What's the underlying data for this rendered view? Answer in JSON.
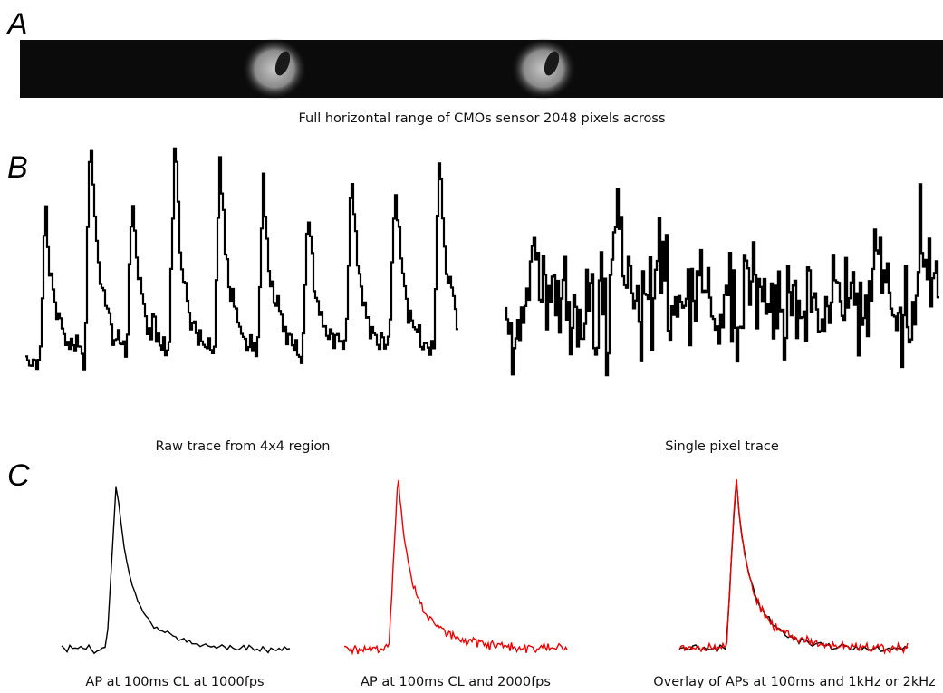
{
  "panel_a": {
    "label": "A",
    "caption": "Full horizontal range of CMOs sensor 2048 pixels across"
  },
  "panel_b": {
    "label": "B",
    "captions": [
      "Raw trace from 4x4 region",
      "Single pixel trace"
    ]
  },
  "panel_c": {
    "label": "C",
    "captions": [
      "AP at 100ms  CL at 1000fps",
      "AP at 100ms CL and 2000fps",
      "Overlay of APs at 100ms and 1kHz or 2kHz"
    ]
  }
}
